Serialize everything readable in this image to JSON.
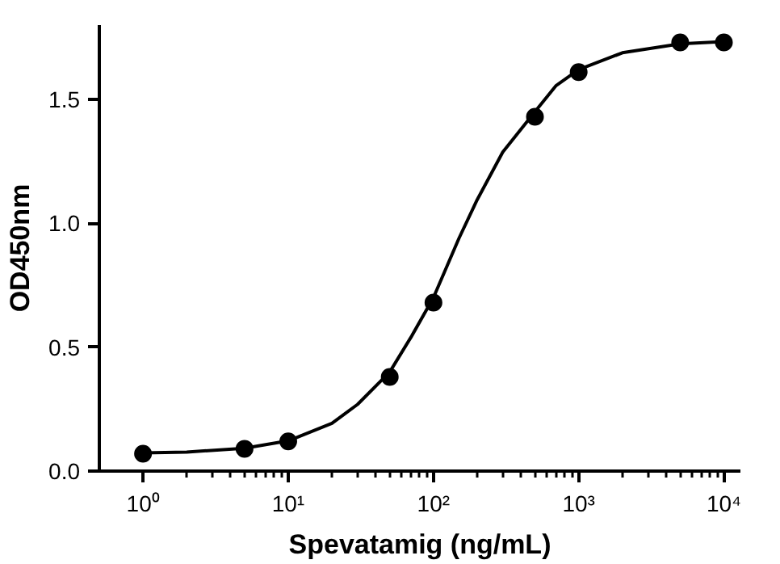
{
  "chart_data": {
    "type": "scatter",
    "xlabel": "Spevatamig (ng/mL)",
    "ylabel": "OD450nm",
    "log": "x",
    "xlim": [
      0.5,
      13000
    ],
    "xticks": [
      {
        "value": 1,
        "label": "10⁰"
      },
      {
        "value": 10,
        "label": "10¹"
      },
      {
        "value": 100,
        "label": "10²"
      },
      {
        "value": 1000,
        "label": "10³"
      },
      {
        "value": 10000,
        "label": "10⁴"
      }
    ],
    "ylim": [
      0,
      1.8
    ],
    "yticks": [
      {
        "value": 0,
        "label": "0.0"
      },
      {
        "value": 0.5,
        "label": "0.5"
      },
      {
        "value": 1,
        "label": "1.0"
      },
      {
        "value": 1.5,
        "label": "1.5"
      }
    ],
    "grid": false,
    "series": [
      {
        "color": "#000000",
        "marker": "circle",
        "x": [
          1,
          5,
          10,
          50,
          100,
          500,
          1000,
          5000,
          10000
        ],
        "values": [
          0.07,
          0.09,
          0.12,
          0.38,
          0.68,
          1.43,
          1.61,
          1.73,
          1.73
        ]
      },
      {
        "type": "line",
        "color": "#000000",
        "line_style": "solid",
        "marker": "none",
        "x": [
          1,
          2,
          5,
          10,
          20,
          30,
          50,
          70,
          100,
          150,
          200,
          300,
          500,
          700,
          1000,
          2000,
          5000,
          10000
        ],
        "values": [
          0.073,
          0.077,
          0.092,
          0.122,
          0.193,
          0.269,
          0.4,
          0.54,
          0.7,
          0.94,
          1.095,
          1.287,
          1.45,
          1.556,
          1.62,
          1.688,
          1.724,
          1.733
        ]
      }
    ]
  }
}
